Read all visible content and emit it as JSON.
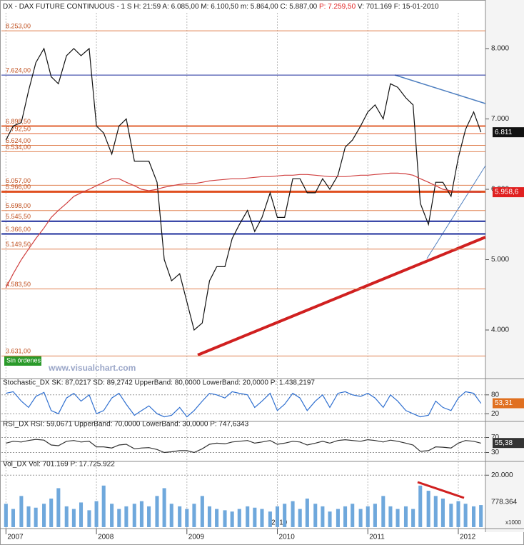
{
  "chart_data": [
    {
      "type": "line",
      "header": [
        "DX - DAX FUTURE CONTINUOUS - 1 S H: 21:59 A: 6.085,00 M: 6.100,50 m: 5.864,00 C: 5.887,00",
        "P: 7.259,50",
        "V: 701.169 F: 15-01-2010"
      ],
      "xlim": [
        2006.95,
        2012.3
      ],
      "ylim": [
        3330,
        8508
      ],
      "yticks": [
        {
          "value": 4000,
          "label": "4.000"
        },
        {
          "value": 5000,
          "label": "5.000"
        },
        {
          "value": 6000,
          "label": "6.000"
        },
        {
          "value": 7000,
          "label": "7.000"
        },
        {
          "value": 8000,
          "label": "8.000"
        }
      ],
      "x": [
        2007,
        2007.08,
        2007.17,
        2007.25,
        2007.33,
        2007.42,
        2007.5,
        2007.58,
        2007.67,
        2007.75,
        2007.83,
        2007.92,
        2008,
        2008.08,
        2008.17,
        2008.25,
        2008.33,
        2008.42,
        2008.5,
        2008.58,
        2008.67,
        2008.75,
        2008.83,
        2008.92,
        2009,
        2009.08,
        2009.17,
        2009.25,
        2009.33,
        2009.42,
        2009.5,
        2009.58,
        2009.67,
        2009.75,
        2009.83,
        2009.92,
        2010,
        2010.08,
        2010.17,
        2010.25,
        2010.33,
        2010.42,
        2010.5,
        2010.58,
        2010.67,
        2010.75,
        2010.83,
        2010.92,
        2011,
        2011.08,
        2011.17,
        2011.25,
        2011.33,
        2011.42,
        2011.5,
        2011.58,
        2011.67,
        2011.75,
        2011.83,
        2011.92,
        2012,
        2012.08,
        2012.17,
        2012.25
      ],
      "series": [
        {
          "color": "#111111",
          "values": [
            6700,
            6900,
            6950,
            7400,
            7800,
            8000,
            7600,
            7500,
            7900,
            8000,
            7900,
            8000,
            6900,
            6800,
            6500,
            6900,
            7000,
            6400,
            6400,
            6400,
            6100,
            5000,
            4700,
            4800,
            4400,
            4000,
            4100,
            4700,
            4900,
            4900,
            5300,
            5500,
            5700,
            5400,
            5600,
            5950,
            5600,
            5600,
            6150,
            6150,
            5950,
            5950,
            6150,
            6000,
            6200,
            6600,
            6700,
            6900,
            7100,
            7200,
            7000,
            7500,
            7450,
            7300,
            7200,
            5800,
            5500,
            6100,
            6100,
            5900,
            6450,
            6850,
            7100,
            6811
          ]
        },
        {
          "color": "#d04040",
          "values": [
            4600,
            4800,
            5000,
            5150,
            5300,
            5450,
            5600,
            5700,
            5800,
            5900,
            5950,
            6000,
            6050,
            6100,
            6150,
            6150,
            6100,
            6050,
            6000,
            5980,
            6000,
            6030,
            6050,
            6070,
            6080,
            6080,
            6100,
            6120,
            6130,
            6140,
            6150,
            6150,
            6160,
            6170,
            6180,
            6180,
            6190,
            6200,
            6200,
            6210,
            6210,
            6200,
            6190,
            6180,
            6180,
            6180,
            6190,
            6200,
            6200,
            6210,
            6220,
            6230,
            6230,
            6220,
            6200,
            6150,
            6100,
            6050,
            6000,
            5980,
            5970,
            5960,
            5960,
            5958
          ]
        }
      ],
      "levels": [
        {
          "value": 8253,
          "label": "8.253,00",
          "color": "#e08050",
          "width": 1
        },
        {
          "value": 7624,
          "label": "7.624,00",
          "color": "#1a2a9a",
          "width": 1
        },
        {
          "value": 6898.5,
          "label": "6.898,50",
          "color": "#e06030",
          "width": 2
        },
        {
          "value": 6792.5,
          "label": "6.792,50",
          "color": "#e06030",
          "width": 1
        },
        {
          "value": 6624,
          "label": "6.624,00",
          "color": "#e08050",
          "width": 1
        },
        {
          "value": 6534,
          "label": "6.534,00",
          "color": "#e08050",
          "width": 1
        },
        {
          "value": 6057,
          "label": "6.057,00",
          "color": "#e08050",
          "width": 1
        },
        {
          "value": 5966,
          "label": "5.966,00",
          "color": "#e05020",
          "width": 3
        },
        {
          "value": 5698,
          "label": "5.698,00",
          "color": "#e08050",
          "width": 1
        },
        {
          "value": 5545.5,
          "label": "5.545,50",
          "color": "#1a2a9a",
          "width": 2
        },
        {
          "value": 5366,
          "label": "5.366,00",
          "color": "#1a2a9a",
          "width": 2
        },
        {
          "value": 5149.5,
          "label": "5.149,50",
          "color": "#e08050",
          "width": 1
        },
        {
          "value": 4583.5,
          "label": "4.583,50",
          "color": "#e08050",
          "width": 1
        },
        {
          "value": 3631,
          "label": "3.631,00",
          "color": "#e08050",
          "width": 1
        }
      ],
      "last_labels": [
        {
          "value": 6811,
          "label": "6.811",
          "color": "#111111"
        },
        {
          "value": 5958.6,
          "label": "5.958,6",
          "color": "#e02020"
        }
      ],
      "notes": [
        "Sin órdenes",
        "www.visualchart.com"
      ]
    },
    {
      "type": "line",
      "title": "Stochastic_DX SK: 87,0217 SD: 89,2742 UpperBand: 80,0000 LowerBand: 20,0000 P: 1.438,2197",
      "xlim": [
        2006.95,
        2012.3
      ],
      "ylim": [
        0,
        100
      ],
      "yticks": [
        20,
        80
      ],
      "x": [
        2007,
        2007.08,
        2007.17,
        2007.25,
        2007.33,
        2007.42,
        2007.5,
        2007.58,
        2007.67,
        2007.75,
        2007.83,
        2007.92,
        2008,
        2008.08,
        2008.17,
        2008.25,
        2008.33,
        2008.42,
        2008.5,
        2008.58,
        2008.67,
        2008.75,
        2008.83,
        2008.92,
        2009,
        2009.08,
        2009.17,
        2009.25,
        2009.33,
        2009.42,
        2009.5,
        2009.58,
        2009.67,
        2009.75,
        2009.83,
        2009.92,
        2010,
        2010.08,
        2010.17,
        2010.25,
        2010.33,
        2010.42,
        2010.5,
        2010.58,
        2010.67,
        2010.75,
        2010.83,
        2010.92,
        2011,
        2011.08,
        2011.17,
        2011.25,
        2011.33,
        2011.42,
        2011.5,
        2011.58,
        2011.67,
        2011.75,
        2011.83,
        2011.92,
        2012,
        2012.08,
        2012.17,
        2012.25
      ],
      "series": [
        {
          "color": "#3070d0",
          "values": [
            85,
            90,
            60,
            40,
            75,
            88,
            30,
            20,
            70,
            85,
            60,
            80,
            20,
            30,
            70,
            85,
            50,
            15,
            30,
            45,
            20,
            10,
            15,
            40,
            10,
            30,
            60,
            85,
            80,
            70,
            90,
            85,
            80,
            40,
            60,
            85,
            30,
            50,
            85,
            70,
            30,
            60,
            80,
            40,
            85,
            90,
            80,
            75,
            85,
            70,
            40,
            80,
            60,
            30,
            20,
            10,
            15,
            60,
            40,
            30,
            70,
            90,
            85,
            53
          ]
        }
      ],
      "last_labels": [
        {
          "value": 53.31,
          "label": "53,31",
          "color": "#e07020"
        }
      ]
    },
    {
      "type": "line",
      "title": "RSI_DX RSI: 59,0671 UpperBand: 70,0000 LowerBand: 30,0000 P: 747,6343",
      "xlim": [
        2006.95,
        2012.3
      ],
      "ylim": [
        10,
        90
      ],
      "yticks": [
        30,
        70
      ],
      "x": [
        2007,
        2007.08,
        2007.17,
        2007.25,
        2007.33,
        2007.42,
        2007.5,
        2007.58,
        2007.67,
        2007.75,
        2007.83,
        2007.92,
        2008,
        2008.08,
        2008.17,
        2008.25,
        2008.33,
        2008.42,
        2008.5,
        2008.58,
        2008.67,
        2008.75,
        2008.83,
        2008.92,
        2009,
        2009.08,
        2009.17,
        2009.25,
        2009.33,
        2009.42,
        2009.5,
        2009.58,
        2009.67,
        2009.75,
        2009.83,
        2009.92,
        2010,
        2010.08,
        2010.17,
        2010.25,
        2010.33,
        2010.42,
        2010.5,
        2010.58,
        2010.67,
        2010.75,
        2010.83,
        2010.92,
        2011,
        2011.08,
        2011.17,
        2011.25,
        2011.33,
        2011.42,
        2011.5,
        2011.58,
        2011.67,
        2011.75,
        2011.83,
        2011.92,
        2012,
        2012.08,
        2012.17,
        2012.25
      ],
      "series": [
        {
          "color": "#333333",
          "values": [
            55,
            60,
            58,
            62,
            65,
            63,
            50,
            48,
            60,
            62,
            58,
            60,
            45,
            45,
            42,
            50,
            52,
            40,
            42,
            43,
            38,
            30,
            32,
            35,
            35,
            30,
            40,
            52,
            55,
            53,
            58,
            60,
            62,
            55,
            58,
            62,
            52,
            55,
            60,
            58,
            50,
            55,
            60,
            55,
            62,
            64,
            62,
            60,
            64,
            62,
            58,
            63,
            60,
            55,
            50,
            33,
            35,
            45,
            44,
            42,
            55,
            62,
            60,
            55
          ]
        }
      ],
      "last_labels": [
        {
          "value": 55.38,
          "label": "55,38",
          "color": "#333333"
        }
      ]
    },
    {
      "type": "bar",
      "title": "Vol_DX Vol: 701.169 P: 17.725.922",
      "xlim": [
        2006.95,
        2012.3
      ],
      "ylim": [
        0,
        22000
      ],
      "yticks": [
        {
          "value": 20000,
          "label": "20.000"
        }
      ],
      "xticks": [
        2007,
        2008,
        2009,
        2010,
        2011,
        2012
      ],
      "x": [
        2007,
        2007.08,
        2007.17,
        2007.25,
        2007.33,
        2007.42,
        2007.5,
        2007.58,
        2007.67,
        2007.75,
        2007.83,
        2007.92,
        2008,
        2008.08,
        2008.17,
        2008.25,
        2008.33,
        2008.42,
        2008.5,
        2008.58,
        2008.67,
        2008.75,
        2008.83,
        2008.92,
        2009,
        2009.08,
        2009.17,
        2009.25,
        2009.33,
        2009.42,
        2009.5,
        2009.58,
        2009.67,
        2009.75,
        2009.83,
        2009.92,
        2010,
        2010.08,
        2010.17,
        2010.25,
        2010.33,
        2010.42,
        2010.5,
        2010.58,
        2010.67,
        2010.75,
        2010.83,
        2010.92,
        2011,
        2011.08,
        2011.17,
        2011.25,
        2011.33,
        2011.42,
        2011.5,
        2011.58,
        2011.67,
        2011.75,
        2011.83,
        2011.92,
        2012,
        2012.08,
        2012.17,
        2012.25
      ],
      "series": [
        {
          "color": "#6fa8dc",
          "values": [
            9000,
            7000,
            12000,
            8000,
            7500,
            9000,
            11000,
            15000,
            8000,
            7000,
            9500,
            6500,
            10000,
            16000,
            9000,
            7000,
            8000,
            9000,
            10000,
            8000,
            12000,
            15000,
            9000,
            8000,
            7000,
            9000,
            12000,
            8000,
            7000,
            6500,
            6000,
            7000,
            8000,
            7500,
            7000,
            6000,
            8000,
            9000,
            10000,
            7000,
            11000,
            9000,
            8000,
            6000,
            7000,
            8000,
            9000,
            7000,
            8000,
            9000,
            12000,
            8000,
            7000,
            8000,
            7000,
            16000,
            14000,
            12000,
            11000,
            9000,
            10000,
            9000,
            8000,
            8500
          ]
        }
      ],
      "labels": [
        "778.364",
        "x1000",
        "2010"
      ]
    }
  ]
}
